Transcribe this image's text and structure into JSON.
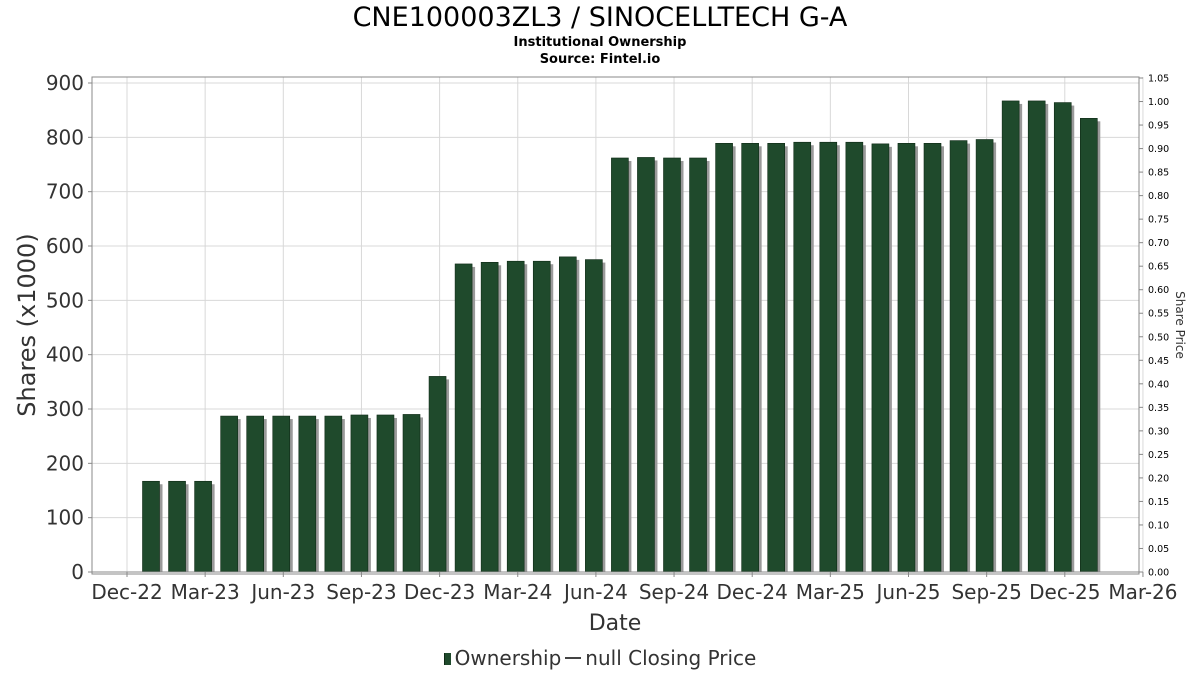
{
  "title": "CNE100003ZL3 / SINOCELLTECH G-A",
  "subtitle": "Institutional Ownership",
  "source": "Source: Fintel.io",
  "legend": {
    "ownership": "Ownership",
    "price": "null Closing Price"
  },
  "colors": {
    "bar": "#1f4a2c",
    "bar_shadow": "#9a9a9a",
    "grid": "#d8d8d8",
    "axis": "#888888"
  },
  "chart_data": {
    "type": "bar",
    "xlabel": "Date",
    "ylabel": "Shares (x1000)",
    "y2label": "Share Price",
    "ylim": [
      0,
      910
    ],
    "y2lim": [
      0,
      1.05
    ],
    "yticks": [
      "0",
      "100",
      "200",
      "300",
      "400",
      "500",
      "600",
      "700",
      "800",
      "900"
    ],
    "y2ticks": [
      "0.00",
      "0.05",
      "0.10",
      "0.15",
      "0.20",
      "0.25",
      "0.30",
      "0.35",
      "0.40",
      "0.45",
      "0.50",
      "0.55",
      "0.60",
      "0.65",
      "0.70",
      "0.75",
      "0.80",
      "0.85",
      "0.90",
      "0.95",
      "1.00",
      "1.05"
    ],
    "xticks": [
      "Dec-22",
      "Mar-23",
      "Jun-23",
      "Sep-23",
      "Dec-23",
      "Mar-24",
      "Jun-24",
      "Sep-24",
      "Dec-24",
      "Mar-25",
      "Jun-25",
      "Sep-25",
      "Dec-25",
      "Mar-26"
    ],
    "grid": true,
    "legend_position": "bottom",
    "series": [
      {
        "name": "Ownership",
        "values": [
          167,
          167,
          167,
          287,
          287,
          287,
          287,
          287,
          289,
          289,
          290,
          360,
          567,
          570,
          572,
          572,
          580,
          575,
          762,
          763,
          762,
          762,
          789,
          789,
          789,
          791,
          791,
          791,
          788,
          789,
          789,
          794,
          796,
          867,
          867,
          864,
          835
        ]
      }
    ]
  }
}
